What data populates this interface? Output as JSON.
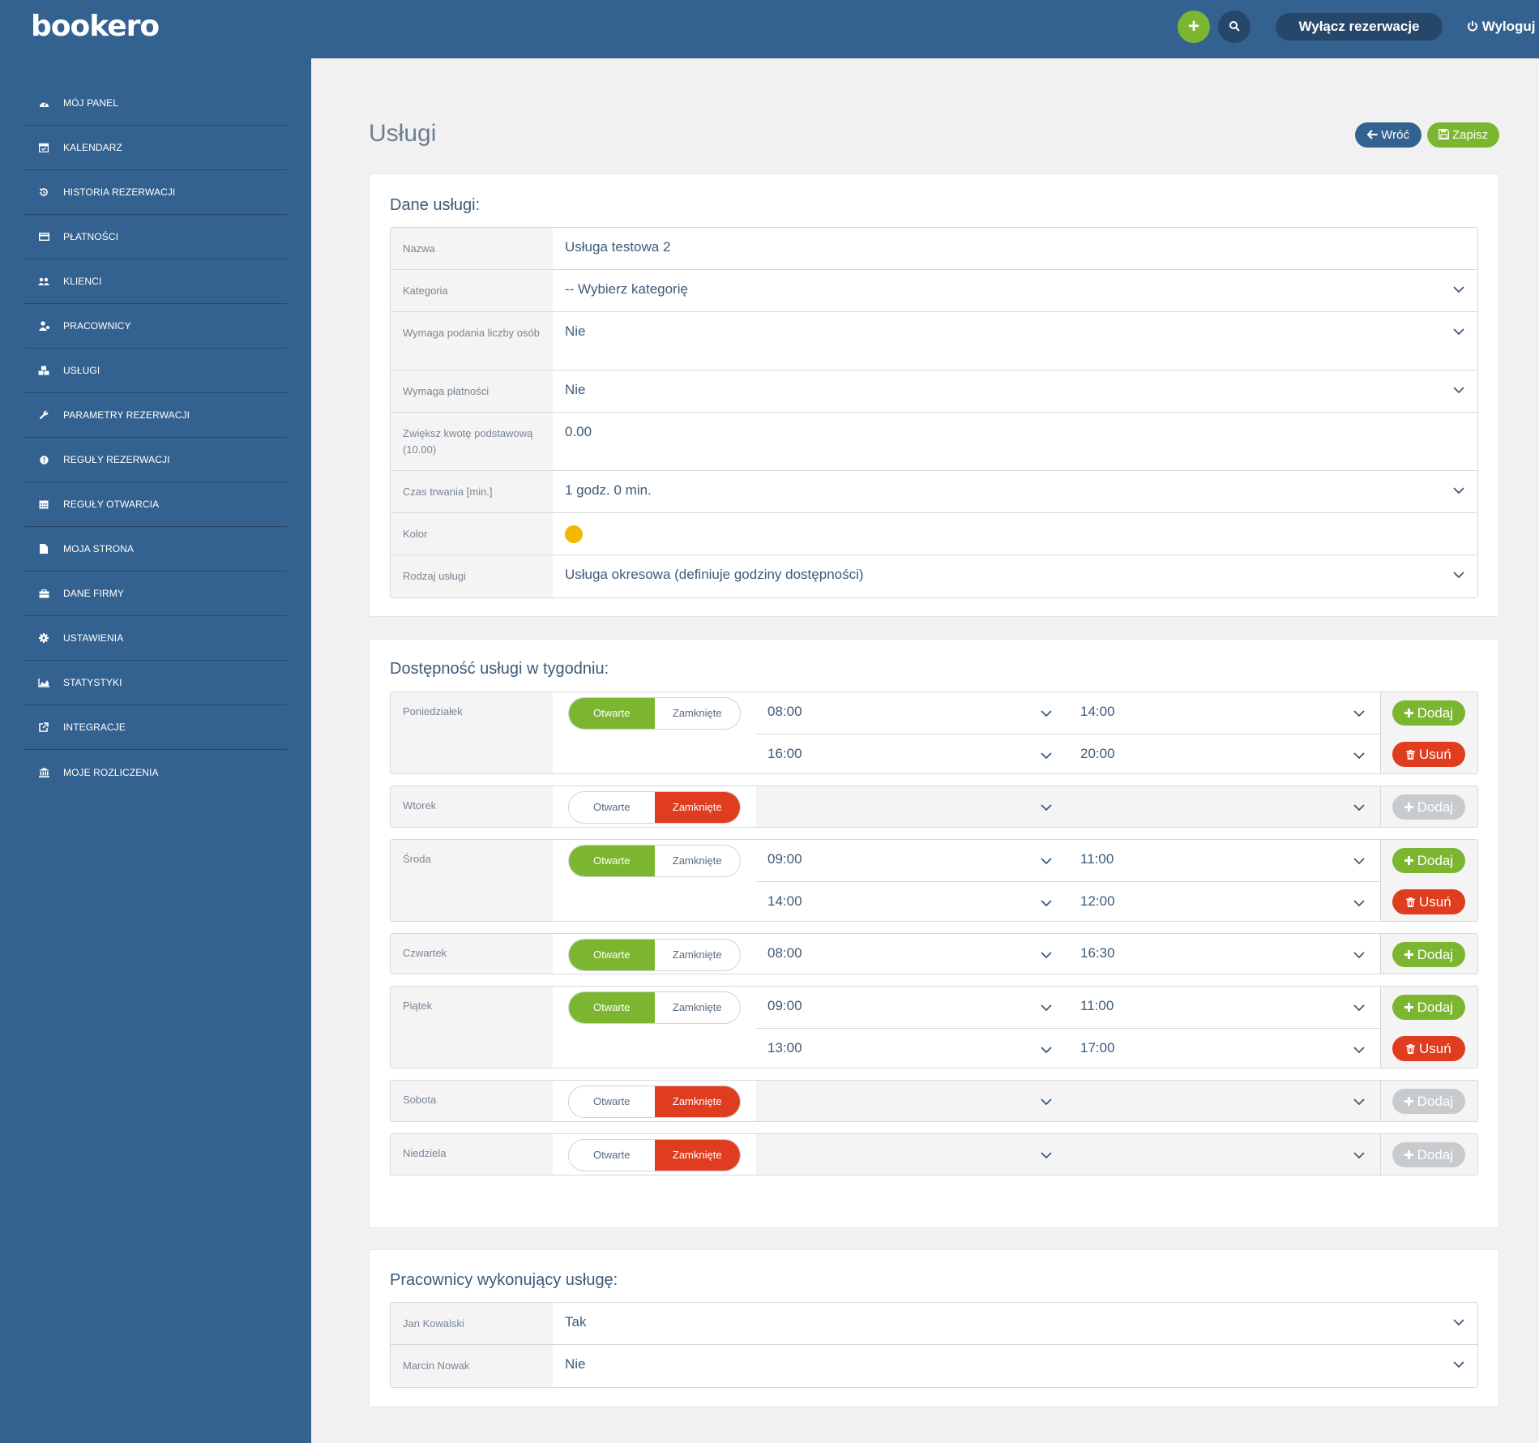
{
  "brand": {
    "logo": "bookero"
  },
  "topbar": {
    "add_label": "+",
    "toggle_reservations": "Wyłącz rezerwacje",
    "logout": "Wyloguj"
  },
  "sidebar": {
    "items": [
      {
        "label": "MÓJ PANEL",
        "icon": "dashboard-icon"
      },
      {
        "label": "KALENDARZ",
        "icon": "calendar-check-icon"
      },
      {
        "label": "HISTORIA REZERWACJI",
        "icon": "history-icon"
      },
      {
        "label": "PŁATNOŚCI",
        "icon": "credit-card-icon"
      },
      {
        "label": "KLIENCI",
        "icon": "users-icon"
      },
      {
        "label": "PRACOWNICY",
        "icon": "user-tie-icon"
      },
      {
        "label": "USŁUGI",
        "icon": "cubes-icon"
      },
      {
        "label": "PARAMETRY REZERWACJI",
        "icon": "wrench-icon"
      },
      {
        "label": "REGUŁY REZERWACJI",
        "icon": "info-circle-icon"
      },
      {
        "label": "REGUŁY OTWARCIA",
        "icon": "calendar-grid-icon"
      },
      {
        "label": "MOJA STRONA",
        "icon": "file-icon"
      },
      {
        "label": "DANE FIRMY",
        "icon": "briefcase-icon"
      },
      {
        "label": "USTAWIENIA",
        "icon": "gear-icon"
      },
      {
        "label": "STATYSTYKI",
        "icon": "area-chart-icon"
      },
      {
        "label": "INTEGRACJE",
        "icon": "external-link-icon"
      },
      {
        "label": "MOJE ROZLICZENIA",
        "icon": "bank-icon"
      }
    ]
  },
  "page": {
    "title": "Usługi",
    "back_label": "Wróć",
    "save_label": "Zapisz"
  },
  "service": {
    "title": "Dane usługi:",
    "fields": [
      {
        "label": "Nazwa",
        "value": "Usługa testowa 2"
      },
      {
        "label": "Kategoria",
        "value": "-- Wybierz kategorię"
      },
      {
        "label": "Wymaga podania liczby osób",
        "value": "Nie"
      },
      {
        "label": "Wymaga płatności",
        "value": "Nie"
      },
      {
        "label": "Zwiększ kwotę podstawową (10.00)",
        "value": "0.00"
      },
      {
        "label": "Czas trwania [min.]",
        "value": "1 godz. 0 min."
      },
      {
        "label": "Kolor",
        "value": "",
        "color": "#f5b800"
      },
      {
        "label": "Rodzaj usługi",
        "value": "Usługa okresowa (definiuje godziny dostępności)"
      }
    ]
  },
  "availability": {
    "title": "Dostępność usługi w tygodniu:",
    "open_label": "Otwarte",
    "closed_label": "Zamknięte",
    "add_label": "Dodaj",
    "remove_label": "Usuń",
    "days": [
      {
        "name": "Poniedziałek",
        "open": true,
        "slots": [
          {
            "from": "08:00",
            "to": "14:00"
          },
          {
            "from": "16:00",
            "to": "20:00"
          }
        ]
      },
      {
        "name": "Wtorek",
        "open": false,
        "slots": []
      },
      {
        "name": "Środa",
        "open": true,
        "slots": [
          {
            "from": "09:00",
            "to": "11:00"
          },
          {
            "from": "14:00",
            "to": "12:00"
          }
        ]
      },
      {
        "name": "Czwartek",
        "open": true,
        "slots": [
          {
            "from": "08:00",
            "to": "16:30"
          }
        ]
      },
      {
        "name": "Piątek",
        "open": true,
        "slots": [
          {
            "from": "09:00",
            "to": "11:00"
          },
          {
            "from": "13:00",
            "to": "17:00"
          }
        ]
      },
      {
        "name": "Sobota",
        "open": false,
        "slots": []
      },
      {
        "name": "Niedziela",
        "open": false,
        "slots": []
      }
    ]
  },
  "employees": {
    "title": "Pracownicy wykonujący usługę:",
    "rows": [
      {
        "name": "Jan Kowalski",
        "value": "Tak"
      },
      {
        "name": "Marcin Nowak",
        "value": "Nie"
      }
    ]
  },
  "colors": {
    "primary": "#346290",
    "dark": "#27476a",
    "success": "#7cb630",
    "danger": "#e03c1f",
    "service_color": "#f5b800"
  }
}
